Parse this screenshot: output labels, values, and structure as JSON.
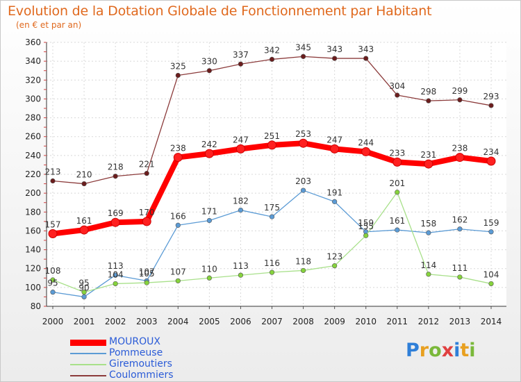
{
  "title": "Evolution de la Dotation Globale de Fonctionnement par Habitant",
  "subtitle": "(en € et par an)",
  "logo_letters": [
    {
      "ch": "P",
      "color": "#2f7fd8"
    },
    {
      "ch": "r",
      "color": "#e8a020"
    },
    {
      "ch": "o",
      "color": "#7ab83a"
    },
    {
      "ch": "x",
      "color": "#e04040"
    },
    {
      "ch": "i",
      "color": "#2f7fd8"
    },
    {
      "ch": "t",
      "color": "#e8a020"
    },
    {
      "ch": "i",
      "color": "#7ab83a"
    }
  ],
  "chart_data": {
    "type": "line",
    "title": "Evolution de la Dotation Globale de Fonctionnement par Habitant",
    "subtitle": "(en € et par an)",
    "x": [
      "2000",
      "2001",
      "2002",
      "2003",
      "2004",
      "2005",
      "2006",
      "2007",
      "2008",
      "2009",
      "2010",
      "2011",
      "2012",
      "2013",
      "2014"
    ],
    "ylim": [
      80,
      360
    ],
    "yticks": [
      80,
      100,
      120,
      140,
      160,
      180,
      200,
      220,
      240,
      260,
      280,
      300,
      320,
      340,
      360
    ],
    "grid": true,
    "legend_position": "bottom-left",
    "series": [
      {
        "name": "MOUROUX",
        "color": "#ff0000",
        "dot": "#ff2020",
        "emphasis": true,
        "values": [
          157,
          161,
          169,
          170,
          238,
          242,
          247,
          251,
          253,
          247,
          244,
          233,
          231,
          238,
          234
        ]
      },
      {
        "name": "Pommeuse",
        "color": "#5b9bd5",
        "dot": "#5b9bd5",
        "values": [
          95,
          90,
          113,
          107,
          166,
          171,
          182,
          175,
          203,
          191,
          159,
          161,
          158,
          162,
          159
        ]
      },
      {
        "name": "Giremoutiers",
        "color": "#a8e08a",
        "dot": "#86d33c",
        "values": [
          108,
          95,
          104,
          105,
          107,
          110,
          113,
          116,
          118,
          123,
          155,
          201,
          114,
          111,
          104
        ]
      },
      {
        "name": "Coulommiers",
        "color": "#8b3a3a",
        "dot": "#6b1d1d",
        "values": [
          213,
          210,
          218,
          221,
          325,
          330,
          337,
          342,
          345,
          343,
          343,
          304,
          298,
          299,
          293
        ]
      }
    ]
  }
}
